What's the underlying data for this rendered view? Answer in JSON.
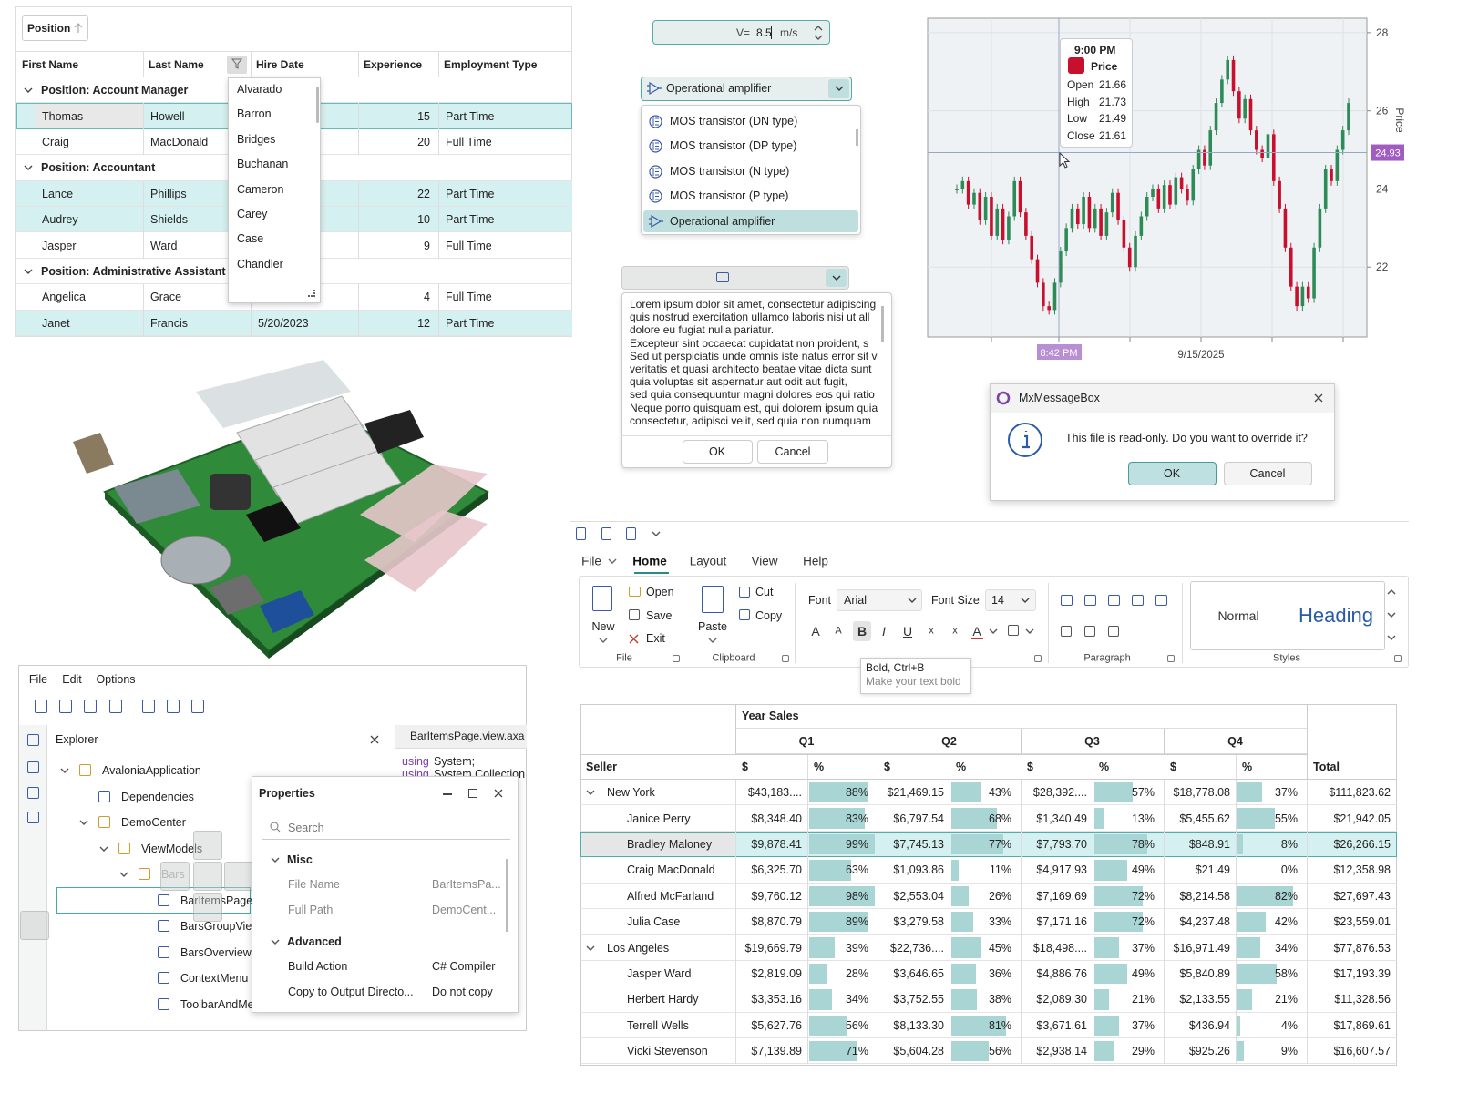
{
  "grid": {
    "group_chip": "Position",
    "columns": [
      "First Name",
      "Last Name",
      "Hire Date",
      "Experience",
      "Employment Type"
    ],
    "groups": [
      {
        "title": "Position: Account Manager",
        "rows": [
          {
            "first": "Thomas",
            "last": "Howell",
            "experience": 15,
            "type": "Part Time"
          },
          {
            "first": "Craig",
            "last": "MacDonald",
            "experience": 20,
            "type": "Full Time"
          }
        ]
      },
      {
        "title": "Position: Accountant",
        "rows": [
          {
            "first": "Lance",
            "last": "Phillips",
            "experience": 22,
            "type": "Part Time"
          },
          {
            "first": "Audrey",
            "last": "Shields",
            "experience": 10,
            "type": "Part Time"
          },
          {
            "first": "Jasper",
            "last": "Ward",
            "experience": 9,
            "type": "Full Time"
          }
        ]
      },
      {
        "title": "Position: Administrative Assistant",
        "rows": [
          {
            "first": "Angelica",
            "last": "Grace",
            "experience": 4,
            "type": "Full Time"
          },
          {
            "first": "Janet",
            "last": "Francis",
            "hire_date": "5/20/2023",
            "experience": 12,
            "type": "Part Time"
          }
        ]
      }
    ],
    "filter_list": [
      "Alvarado",
      "Barron",
      "Bridges",
      "Buchanan",
      "Cameron",
      "Carey",
      "Case",
      "Chandler"
    ]
  },
  "numeric": {
    "label": "V=",
    "value": 8.5,
    "unit": "m/s"
  },
  "combo": {
    "selected": "Operational amplifier",
    "items": [
      "MOS transistor (DN type)",
      "MOS transistor (DP type)",
      "MOS transistor (N type)",
      "MOS transistor (P type)",
      "Operational amplifier"
    ]
  },
  "memo": {
    "lines": [
      "Lorem ipsum dolor sit amet, consectetur adipiscing",
      "quis nostrud exercitation ullamco laboris nisi ut all",
      "dolore eu fugiat nulla pariatur.",
      "Excepteur sint occaecat cupidatat non proident, s",
      "Sed ut perspiciatis unde omnis iste natus error sit v",
      "veritatis et quasi architecto beatae vitae dicta sunt",
      "quia voluptas sit aspernatur aut odit aut fugit,",
      "sed quia consequuntur magni dolores eos qui ratio",
      "Neque porro quisquam est, qui dolorem ipsum quia",
      "consectetur, adipisci velit, sed quia non numquam"
    ],
    "ok": "OK",
    "cancel": "Cancel"
  },
  "price_chart": {
    "type": "candlestick",
    "axis_label": "Price",
    "ylim": [
      20.21,
      28.37
    ],
    "yticks": [
      22,
      24,
      26,
      28
    ],
    "crosshair": 24.93,
    "x_label": "8:42 PM",
    "x_tick": "9/15/2025",
    "tooltip": {
      "time": "9:00 PM",
      "series": "Price",
      "color": "#c8102e",
      "rows": [
        {
          "label": "Open",
          "value": 21.66
        },
        {
          "label": "High",
          "value": 21.73
        },
        {
          "label": "Low",
          "value": 21.49
        },
        {
          "label": "Close",
          "value": 21.61
        }
      ]
    },
    "values": [
      24.0,
      24.2,
      23.6,
      23.9,
      23.2,
      23.8,
      22.8,
      23.5,
      22.7,
      23.3,
      24.2,
      23.4,
      22.8,
      22.2,
      21.6,
      21.0,
      20.9,
      21.6,
      22.4,
      23.0,
      23.5,
      23.1,
      23.8,
      23.0,
      23.5,
      22.8,
      23.4,
      23.9,
      23.2,
      22.5,
      22.0,
      22.8,
      23.3,
      23.8,
      24.0,
      23.5,
      24.1,
      23.6,
      24.3,
      24.0,
      23.7,
      24.5,
      25.0,
      24.6,
      25.5,
      26.2,
      26.8,
      27.3,
      26.5,
      25.8,
      26.3,
      25.5,
      25.0,
      24.8,
      25.4,
      24.2,
      23.5,
      22.5,
      21.5,
      21.0,
      21.5,
      21.2,
      22.5,
      23.5,
      24.5,
      24.2,
      25.0,
      25.5,
      26.2
    ]
  },
  "message_box": {
    "title": "MxMessageBox",
    "text": "This file is read-only. Do you want to override it?",
    "ok": "OK",
    "cancel": "Cancel"
  },
  "ide": {
    "menu": [
      "File",
      "Edit",
      "Options"
    ],
    "explorer": "Explorer",
    "tree": [
      "AvaloniaApplication",
      "Dependencies",
      "DemoCenter",
      "ViewModels",
      "Bars",
      "BarItemsPage",
      "BarsGroupView",
      "BarsOverview",
      "ContextMenu",
      "ToolbarAndMe"
    ],
    "code_tab": "BarItemsPage.view.axa",
    "code": [
      {
        "keyword": "using",
        "text": "System;"
      },
      {
        "keyword": "using",
        "text": "System.Collection"
      }
    ],
    "properties": {
      "title": "Properties",
      "search": "Search",
      "sections": [
        {
          "name": "Misc",
          "items": [
            {
              "name": "File Name",
              "value": "BarItemsPa..."
            },
            {
              "name": "Full Path",
              "value": "DemoCent..."
            }
          ]
        },
        {
          "name": "Advanced",
          "items": [
            {
              "name": "Build Action",
              "value": "C# Compiler"
            },
            {
              "name": "Copy to Output Directo...",
              "value": "Do not copy"
            }
          ]
        }
      ]
    }
  },
  "ribbon": {
    "tabs": [
      "File",
      "Home",
      "Layout",
      "View",
      "Help"
    ],
    "new": "New",
    "open": "Open",
    "save": "Save",
    "exit": "Exit",
    "paste": "Paste",
    "cut": "Cut",
    "copy": "Copy",
    "font_label": "Font",
    "font": "Arial",
    "font_size_label": "Font Size",
    "font_size": "14",
    "font_glyphs": [
      "A",
      "A",
      "B",
      "I",
      "U",
      "x",
      "x",
      "A"
    ],
    "groups": [
      "File",
      "Clipboard",
      "Paragraph",
      "Styles"
    ],
    "styles": [
      "Normal",
      "Heading"
    ],
    "tooltip": {
      "title": "Bold, Ctrl+B",
      "text": "Make your text bold"
    }
  },
  "pivot": {
    "corner": "Year Sales",
    "quarters": [
      "Q1",
      "Q2",
      "Q3",
      "Q4"
    ],
    "row_header": "Seller",
    "amount_header": "$",
    "percent_header": "%",
    "total_header": "Total",
    "rows": [
      {
        "name": "New York",
        "group": true,
        "cells": [
          {
            "amount": "$43,183....",
            "percent": {
              "value": 88,
              "label": "88%"
            }
          },
          {
            "amount": "$21,469.15",
            "percent": {
              "value": 43,
              "label": "43%"
            }
          },
          {
            "amount": "$28,392....",
            "percent": {
              "value": 57,
              "label": "57%"
            }
          },
          {
            "amount": "$18,778.08",
            "percent": {
              "value": 37,
              "label": "37%"
            }
          }
        ],
        "total": "$111,823.62"
      },
      {
        "name": "Janice Perry",
        "cells": [
          {
            "amount": "$8,348.40",
            "percent": {
              "value": 83,
              "label": "83%"
            }
          },
          {
            "amount": "$6,797.54",
            "percent": {
              "value": 68,
              "label": "68%"
            }
          },
          {
            "amount": "$1,340.49",
            "percent": {
              "value": 13,
              "label": "13%"
            }
          },
          {
            "amount": "$5,455.62",
            "percent": {
              "value": 55,
              "label": "55%"
            }
          }
        ],
        "total": "$21,942.05"
      },
      {
        "name": "Bradley Maloney",
        "cells": [
          {
            "amount": "$9,878.41",
            "percent": {
              "value": 99,
              "label": "99%"
            }
          },
          {
            "amount": "$7,745.13",
            "percent": {
              "value": 77,
              "label": "77%"
            }
          },
          {
            "amount": "$7,793.70",
            "percent": {
              "value": 78,
              "label": "78%"
            }
          },
          {
            "amount": "$848.91",
            "percent": {
              "value": 8,
              "label": "8%"
            }
          }
        ],
        "total": "$26,266.15"
      },
      {
        "name": "Craig MacDonald",
        "cells": [
          {
            "amount": "$6,325.70",
            "percent": {
              "value": 63,
              "label": "63%"
            }
          },
          {
            "amount": "$1,093.86",
            "percent": {
              "value": 11,
              "label": "11%"
            }
          },
          {
            "amount": "$4,917.93",
            "percent": {
              "value": 49,
              "label": "49%"
            }
          },
          {
            "amount": "$21.49",
            "percent": {
              "value": 0,
              "label": "0%"
            }
          }
        ],
        "total": "$12,358.98"
      },
      {
        "name": "Alfred McFarland",
        "cells": [
          {
            "amount": "$9,760.12",
            "percent": {
              "value": 98,
              "label": "98%"
            }
          },
          {
            "amount": "$2,553.04",
            "percent": {
              "value": 26,
              "label": "26%"
            }
          },
          {
            "amount": "$7,169.69",
            "percent": {
              "value": 72,
              "label": "72%"
            }
          },
          {
            "amount": "$8,214.58",
            "percent": {
              "value": 82,
              "label": "82%"
            }
          }
        ],
        "total": "$27,697.43"
      },
      {
        "name": "Julia Case",
        "cells": [
          {
            "amount": "$8,870.79",
            "percent": {
              "value": 89,
              "label": "89%"
            }
          },
          {
            "amount": "$3,279.58",
            "percent": {
              "value": 33,
              "label": "33%"
            }
          },
          {
            "amount": "$7,171.16",
            "percent": {
              "value": 72,
              "label": "72%"
            }
          },
          {
            "amount": "$4,237.48",
            "percent": {
              "value": 42,
              "label": "42%"
            }
          }
        ],
        "total": "$23,559.01"
      },
      {
        "name": "Los Angeles",
        "group": true,
        "cells": [
          {
            "amount": "$19,669.79",
            "percent": {
              "value": 39,
              "label": "39%"
            }
          },
          {
            "amount": "$22,736....",
            "percent": {
              "value": 45,
              "label": "45%"
            }
          },
          {
            "amount": "$18,498....",
            "percent": {
              "value": 37,
              "label": "37%"
            }
          },
          {
            "amount": "$16,971.49",
            "percent": {
              "value": 34,
              "label": "34%"
            }
          }
        ],
        "total": "$77,876.53"
      },
      {
        "name": "Jasper Ward",
        "cells": [
          {
            "amount": "$2,819.09",
            "percent": {
              "value": 28,
              "label": "28%"
            }
          },
          {
            "amount": "$3,646.65",
            "percent": {
              "value": 36,
              "label": "36%"
            }
          },
          {
            "amount": "$4,886.76",
            "percent": {
              "value": 49,
              "label": "49%"
            }
          },
          {
            "amount": "$5,840.89",
            "percent": {
              "value": 58,
              "label": "58%"
            }
          }
        ],
        "total": "$17,193.39"
      },
      {
        "name": "Herbert Hardy",
        "cells": [
          {
            "amount": "$3,353.16",
            "percent": {
              "value": 34,
              "label": "34%"
            }
          },
          {
            "amount": "$3,752.55",
            "percent": {
              "value": 38,
              "label": "38%"
            }
          },
          {
            "amount": "$2,089.30",
            "percent": {
              "value": 21,
              "label": "21%"
            }
          },
          {
            "amount": "$2,133.55",
            "percent": {
              "value": 21,
              "label": "21%"
            }
          }
        ],
        "total": "$11,328.56"
      },
      {
        "name": "Terrell Wells",
        "cells": [
          {
            "amount": "$5,627.76",
            "percent": {
              "value": 56,
              "label": "56%"
            }
          },
          {
            "amount": "$8,133.30",
            "percent": {
              "value": 81,
              "label": "81%"
            }
          },
          {
            "amount": "$3,671.61",
            "percent": {
              "value": 37,
              "label": "37%"
            }
          },
          {
            "amount": "$436.94",
            "percent": {
              "value": 4,
              "label": "4%"
            }
          }
        ],
        "total": "$17,869.61"
      },
      {
        "name": "Vicki Stevenson",
        "cells": [
          {
            "amount": "$7,139.89",
            "percent": {
              "value": 71,
              "label": "71%"
            }
          },
          {
            "amount": "$5,604.28",
            "percent": {
              "value": 56,
              "label": "56%"
            }
          },
          {
            "amount": "$2,938.14",
            "percent": {
              "value": 29,
              "label": "29%"
            }
          },
          {
            "amount": "$925.26",
            "percent": {
              "value": 9,
              "label": "9%"
            }
          }
        ],
        "total": "$16,607.57"
      }
    ]
  }
}
